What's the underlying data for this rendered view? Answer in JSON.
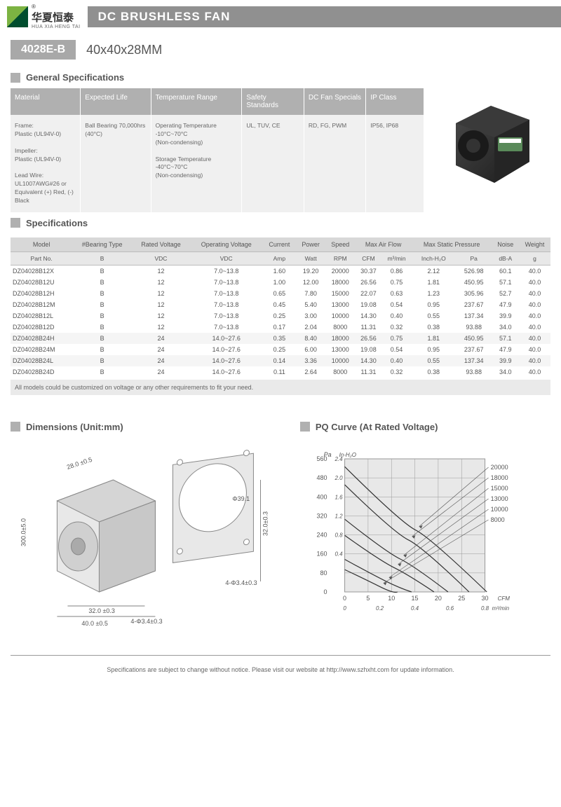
{
  "header": {
    "logo_cn": "华夏恒泰",
    "logo_en": "HUA XIA HENG TAI",
    "title": "DC BRUSHLESS FAN"
  },
  "model": {
    "badge": "4028E-B",
    "size": "40x40x28MM"
  },
  "general": {
    "title": "General Specifications",
    "headers": [
      "Material",
      "Expected Life",
      "Temperature Range",
      "Safety Standards",
      "DC Fan Specials",
      "IP Class"
    ],
    "material": "Frame:\nPlastic (UL94V-0)\n\nImpeller:\nPlastic (UL94V-0)\n\nLead Wire:\nUL1007AWG#26 or Equivalent (+) Red, (-) Black",
    "life": "Ball Bearing 70,000hrs (40°C)",
    "temp": "Operating Temperature\n-10°C~70°C\n(Non-condensing)\n\nStorage Temperature\n-40°C~70°C\n(Non-condensing)",
    "safety": "UL, TUV, CE",
    "specials": "RD, FG, PWM",
    "ip": "IP56, IP68"
  },
  "specs": {
    "title": "Specifications",
    "headers1": [
      "Model",
      "#Bearing Type",
      "Rated Voltage",
      "Operating Voltage",
      "Current",
      "Power",
      "Speed",
      "Max Air Flow",
      "",
      "Max Static Pressure",
      "",
      "Noise",
      "Weight"
    ],
    "headers2": [
      "Part No.",
      "B",
      "VDC",
      "VDC",
      "Amp",
      "Watt",
      "RPM",
      "CFM",
      "m³/min",
      "Inch-H₂O",
      "Pa",
      "dB-A",
      "g"
    ],
    "rows": [
      [
        "DZ04028B12X",
        "B",
        "12",
        "7.0~13.8",
        "1.60",
        "19.20",
        "20000",
        "30.37",
        "0.86",
        "2.12",
        "526.98",
        "60.1",
        "40.0"
      ],
      [
        "DZ04028B12U",
        "B",
        "12",
        "7.0~13.8",
        "1.00",
        "12.00",
        "18000",
        "26.56",
        "0.75",
        "1.81",
        "450.95",
        "57.1",
        "40.0"
      ],
      [
        "DZ04028B12H",
        "B",
        "12",
        "7.0~13.8",
        "0.65",
        "7.80",
        "15000",
        "22.07",
        "0.63",
        "1.23",
        "305.96",
        "52.7",
        "40.0"
      ],
      [
        "DZ04028B12M",
        "B",
        "12",
        "7.0~13.8",
        "0.45",
        "5.40",
        "13000",
        "19.08",
        "0.54",
        "0.95",
        "237.67",
        "47.9",
        "40.0"
      ],
      [
        "DZ04028B12L",
        "B",
        "12",
        "7.0~13.8",
        "0.25",
        "3.00",
        "10000",
        "14.30",
        "0.40",
        "0.55",
        "137.34",
        "39.9",
        "40.0"
      ],
      [
        "DZ04028B12D",
        "B",
        "12",
        "7.0~13.8",
        "0.17",
        "2.04",
        "8000",
        "11.31",
        "0.32",
        "0.38",
        "93.88",
        "34.0",
        "40.0"
      ],
      [
        "DZ04028B24H",
        "B",
        "24",
        "14.0~27.6",
        "0.35",
        "8.40",
        "18000",
        "26.56",
        "0.75",
        "1.81",
        "450.95",
        "57.1",
        "40.0"
      ],
      [
        "DZ04028B24M",
        "B",
        "24",
        "14.0~27.6",
        "0.25",
        "6.00",
        "13000",
        "19.08",
        "0.54",
        "0.95",
        "237.67",
        "47.9",
        "40.0"
      ],
      [
        "DZ04028B24L",
        "B",
        "24",
        "14.0~27.6",
        "0.14",
        "3.36",
        "10000",
        "14.30",
        "0.40",
        "0.55",
        "137.34",
        "39.9",
        "40.0"
      ],
      [
        "DZ04028B24D",
        "B",
        "24",
        "14.0~27.6",
        "0.11",
        "2.64",
        "8000",
        "11.31",
        "0.32",
        "0.38",
        "93.88",
        "34.0",
        "40.0"
      ]
    ],
    "note": "All models could be customized on voltage or any other requirements to fit your need."
  },
  "dimensions": {
    "title": "Dimensions (Unit:mm)",
    "labels": {
      "depth": "28.0 ±0.5",
      "wire": "300.0±5.0",
      "width": "40.0 ±0.5",
      "inner": "32.0 ±0.3",
      "hole": "4-Φ3.4±0.3",
      "diameter": "Φ39.1",
      "height": "32.0±0.3",
      "hole2": "4-Φ3.4±0.3"
    }
  },
  "pq": {
    "title": "PQ Curve (At Rated Voltage)",
    "y_pa": {
      "label": "Pa",
      "ticks": [
        "560",
        "480",
        "400",
        "320",
        "240",
        "160",
        "80",
        "0"
      ]
    },
    "y_inh2o": {
      "label": "In-H₂O",
      "ticks": [
        "2.4",
        "2.0",
        "1.6",
        "1.2",
        "0.8",
        "0.4"
      ]
    },
    "x_cfm": {
      "label": "CFM",
      "ticks": [
        "0",
        "5",
        "10",
        "15",
        "20",
        "25",
        "30"
      ]
    },
    "x_m3": {
      "label": "m³/min",
      "ticks": [
        "0",
        "0.2",
        "0.4",
        "0.6",
        "0.8"
      ]
    },
    "curves": [
      "20000",
      "18000",
      "15000",
      "13000",
      "10000",
      "8000"
    ],
    "colors": {
      "bg": "#e8e8e8",
      "grid": "#999",
      "line": "#333",
      "text": "#555"
    }
  },
  "footer": "Specifications are subject to change without notice. Please visit our website at http://www.szhxht.com for update information."
}
